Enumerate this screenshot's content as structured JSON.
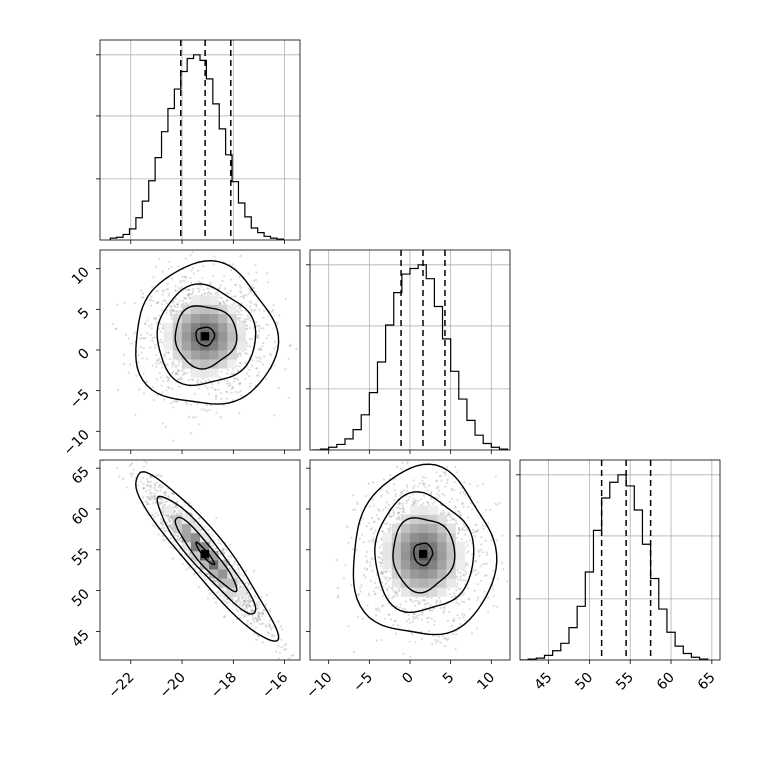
{
  "chart_data": {
    "type": "corner",
    "parameters": [
      {
        "key": "p0",
        "range": [
          -23.2,
          -15.4
        ],
        "ticks": [
          -22,
          -20,
          -18,
          -16
        ],
        "tick_labels": [
          "−22",
          "−20",
          "−18",
          "−16"
        ],
        "quantiles": [
          -20.05,
          -19.1,
          -18.1
        ]
      },
      {
        "key": "p1",
        "range": [
          -12.3,
          12.3
        ],
        "ticks": [
          -10,
          -5,
          0,
          5,
          10
        ],
        "tick_labels": [
          "−10",
          "−5",
          "0",
          "5",
          "10"
        ],
        "quantiles": [
          -1.1,
          1.6,
          4.3
        ]
      },
      {
        "key": "p2",
        "range": [
          41.5,
          66.0
        ],
        "ticks": [
          45,
          50,
          55,
          60,
          65
        ],
        "tick_labels": [
          "45",
          "50",
          "55",
          "60",
          "65"
        ],
        "quantiles": [
          51.5,
          54.5,
          57.5
        ]
      }
    ],
    "histograms": [
      {
        "bins": [
          -22.8,
          -22.55,
          -22.3,
          -22.05,
          -21.8,
          -21.55,
          -21.3,
          -21.05,
          -20.8,
          -20.55,
          -20.3,
          -20.05,
          -19.8,
          -19.55,
          -19.3,
          -19.05,
          -18.8,
          -18.55,
          -18.3,
          -18.05,
          -17.8,
          -17.55,
          -17.3,
          -17.05,
          -16.8,
          -16.55,
          -16.3,
          -16.05
        ],
        "counts": [
          2,
          3,
          6,
          12,
          24,
          42,
          64,
          89,
          117,
          142,
          163,
          182,
          196,
          200,
          194,
          174,
          147,
          120,
          92,
          63,
          40,
          25,
          13,
          8,
          4,
          2,
          1
        ]
      },
      {
        "bins": [
          -12,
          -11,
          -10,
          -9,
          -8,
          -7,
          -6,
          -5,
          -4,
          -3,
          -2,
          -1,
          0,
          1,
          2,
          3,
          4,
          5,
          6,
          7,
          8,
          9,
          10,
          11,
          12
        ],
        "counts": [
          0,
          1,
          3,
          6,
          12,
          22,
          38,
          62,
          95,
          135,
          170,
          190,
          196,
          200,
          185,
          155,
          120,
          85,
          55,
          32,
          16,
          7,
          3,
          1
        ]
      },
      {
        "bins": [
          41.5,
          42.5,
          43.5,
          44.5,
          45.5,
          46.5,
          47.5,
          48.5,
          49.5,
          50.5,
          51.5,
          52.5,
          53.5,
          54.5,
          55.5,
          56.5,
          57.5,
          58.5,
          59.5,
          60.5,
          61.5,
          62.5,
          63.5,
          64.5
        ],
        "counts": [
          0,
          1,
          2,
          5,
          10,
          18,
          35,
          58,
          95,
          140,
          175,
          192,
          200,
          188,
          162,
          125,
          88,
          55,
          30,
          15,
          7,
          3,
          1
        ]
      }
    ],
    "pairs": [
      {
        "x": "p0",
        "y": "p1",
        "mean": [
          -19.1,
          1.7
        ],
        "sd": [
          1.2,
          3.8
        ],
        "corr": 0.0,
        "contour_levels": [
          0.3,
          1.0,
          1.6,
          2.3
        ]
      },
      {
        "x": "p0",
        "y": "p2",
        "mean": [
          -19.1,
          54.5
        ],
        "sd": [
          1.2,
          4.5
        ],
        "corr": -0.93,
        "contour_levels": [
          0.3,
          1.0,
          1.6,
          2.3
        ]
      },
      {
        "x": "p1",
        "y": "p2",
        "mean": [
          1.6,
          54.5
        ],
        "sd": [
          3.8,
          4.5
        ],
        "corr": 0.0,
        "contour_levels": [
          0.3,
          1.0,
          1.6,
          2.3
        ]
      }
    ],
    "hist_grid_fractions": [
      0.33,
      0.67,
      1.0
    ],
    "grid": true,
    "title": "",
    "xlabel": "",
    "ylabel": ""
  }
}
